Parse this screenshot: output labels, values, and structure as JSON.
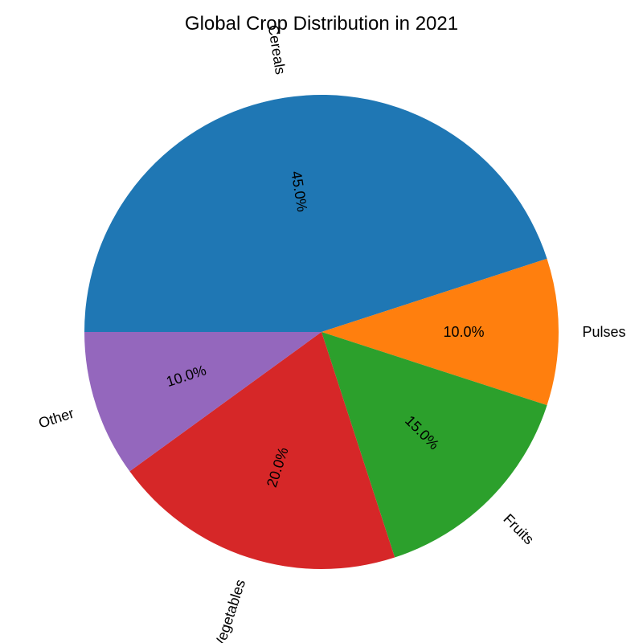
{
  "chart_data": {
    "type": "pie",
    "title": "Global Crop Distribution in 2021",
    "categories": [
      "Cereals",
      "Pulses",
      "Fruits",
      "Vegetables",
      "Other"
    ],
    "values": [
      45.0,
      10.0,
      15.0,
      20.0,
      10.0
    ],
    "value_labels": [
      "45.0%",
      "10.0%",
      "15.0%",
      "20.0%",
      "10.0%"
    ],
    "colors": [
      "#1f77b4",
      "#ff7f0e",
      "#2ca02c",
      "#d62728",
      "#9467bd"
    ],
    "start_angle_deg": 180,
    "direction": "clockwise",
    "labels_rotated": true
  }
}
